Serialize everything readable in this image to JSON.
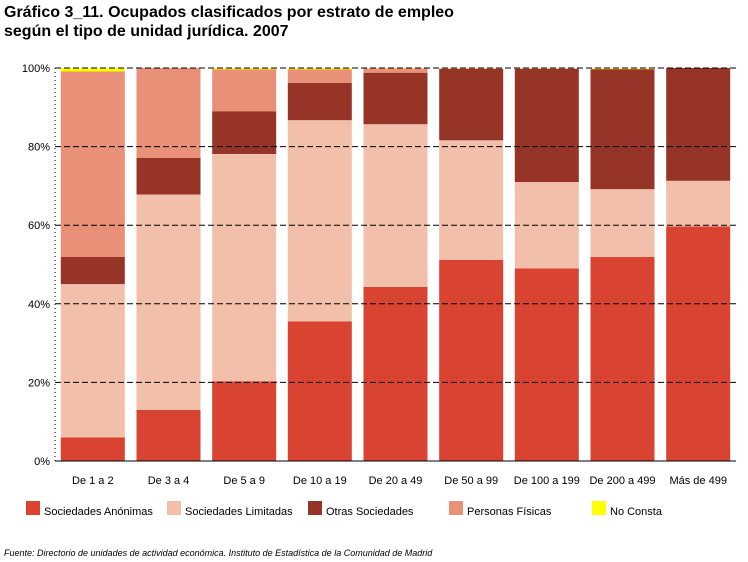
{
  "title": {
    "line1": "Gráfico 3_11. Ocupados clasificados por estrato de empleo",
    "line2": "según el tipo de unidad jurídica. 2007"
  },
  "source": "Fuente: Directorio de unidades de actividad económica. Instituto de Estadística de la Comunidad de Madrid",
  "chart_data": {
    "type": "bar",
    "stacked": true,
    "percent": true,
    "categories": [
      "De 1 a 2",
      "De 3 a 4",
      "De 5 a 9",
      "De 10 a 19",
      "De 20 a 49",
      "De 50 a 99",
      "De 100 a 199",
      "De 200 a 499",
      "Más de 499"
    ],
    "y_ticks": [
      "0%",
      "20%",
      "40%",
      "60%",
      "80%",
      "100%"
    ],
    "ylim": [
      0,
      100
    ],
    "grid": true,
    "legend_position": "bottom",
    "series": [
      {
        "name": "Sociedades Anónimas",
        "color": "#d94332",
        "values": [
          6,
          13,
          20.3,
          35.5,
          44.3,
          51.2,
          49,
          51.9,
          59.7
        ]
      },
      {
        "name": "Sociedades Limitadas",
        "color": "#f2bfaa",
        "values": [
          39,
          54.8,
          57.8,
          51.2,
          41.4,
          30.4,
          22,
          17.3,
          11.6
        ]
      },
      {
        "name": "Otras Sociedades",
        "color": "#963428",
        "values": [
          6.9,
          9.3,
          10.9,
          9.5,
          13.1,
          18.2,
          28.8,
          30.5,
          28.7
        ]
      },
      {
        "name": "Personas Físicas",
        "color": "#e89078",
        "values": [
          47.2,
          22.9,
          10.7,
          3.5,
          1.1,
          0.1,
          0.1,
          0.1,
          0
        ]
      },
      {
        "name": "No Consta",
        "color": "#ffff00",
        "values": [
          0.9,
          0,
          0.3,
          0.3,
          0.1,
          0.1,
          0.1,
          0.2,
          0
        ]
      }
    ]
  }
}
